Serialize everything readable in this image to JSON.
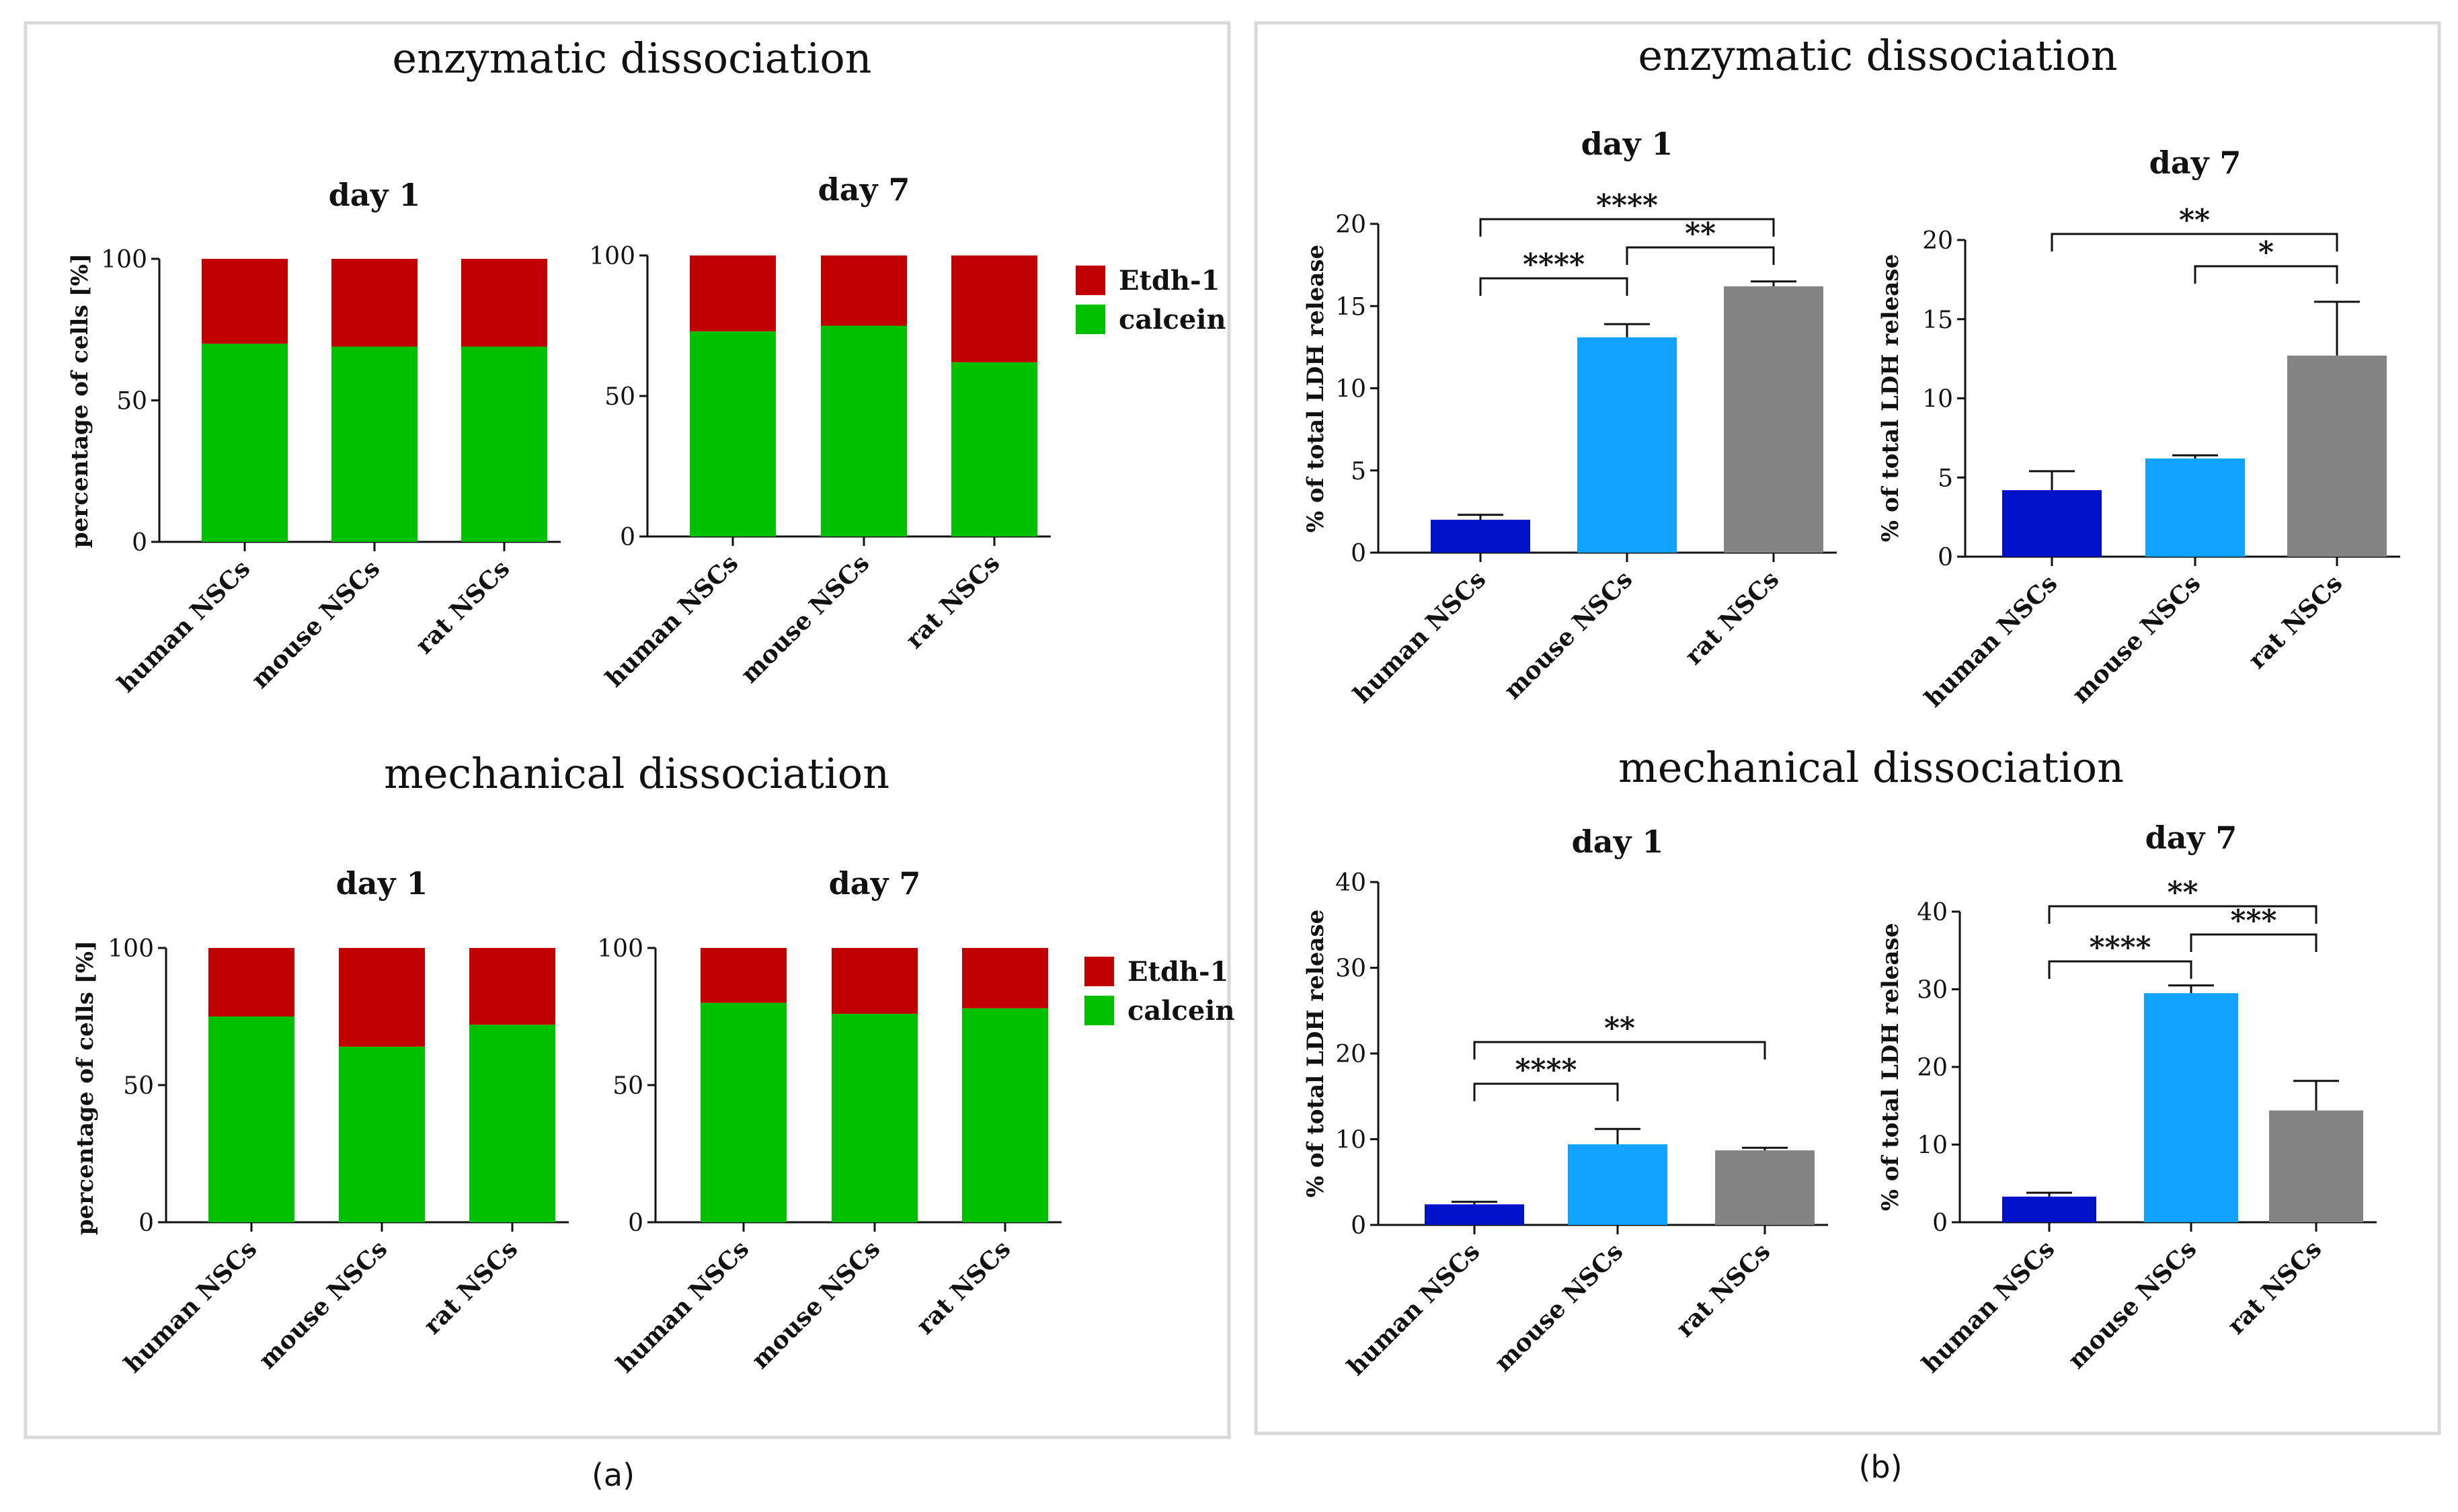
{
  "figure": {
    "panel_a": {
      "label": "(a)",
      "top_title": "enzymatic dissociation",
      "bottom_title": "mechanical dissociation"
    },
    "panel_b": {
      "label": "(b)",
      "top_title": "enzymatic dissociation",
      "bottom_title": "mechanical dissociation"
    }
  },
  "colors": {
    "etdh": "#c00000",
    "calcein": "#00c000",
    "human": "#0012c8",
    "mouse": "#10a2ff",
    "rat": "#848484",
    "border": "#d9d9d9"
  },
  "chart_data": [
    {
      "id": "a-enz-d1",
      "type": "bar",
      "stacked": true,
      "title": "day 1",
      "ylabel": "percentage of cells [%]",
      "ylim": [
        0,
        100
      ],
      "yticks": [
        0,
        50,
        100
      ],
      "categories": [
        "human NSCs",
        "mouse NSCs",
        "rat NSCs"
      ],
      "series": [
        {
          "name": "calcein",
          "values": [
            70,
            69,
            69
          ]
        },
        {
          "name": "Etdh-1",
          "values": [
            30,
            31,
            31
          ]
        }
      ],
      "legend": "right"
    },
    {
      "id": "a-enz-d7",
      "type": "bar",
      "stacked": true,
      "title": "day 7",
      "ylabel": "",
      "ylim": [
        0,
        100
      ],
      "yticks": [
        0,
        50,
        100
      ],
      "categories": [
        "human NSCs",
        "mouse NSCs",
        "rat NSCs"
      ],
      "series": [
        {
          "name": "calcein",
          "values": [
            73,
            75,
            62
          ]
        },
        {
          "name": "Etdh-1",
          "values": [
            27,
            25,
            38
          ]
        }
      ]
    },
    {
      "id": "a-mech-d1",
      "type": "bar",
      "stacked": true,
      "title": "day 1",
      "ylabel": "percentage of cells [%]",
      "ylim": [
        0,
        100
      ],
      "yticks": [
        0,
        50,
        100
      ],
      "categories": [
        "human NSCs",
        "mouse NSCs",
        "rat NSCs"
      ],
      "series": [
        {
          "name": "calcein",
          "values": [
            75,
            64,
            72
          ]
        },
        {
          "name": "Etdh-1",
          "values": [
            25,
            36,
            28
          ]
        }
      ],
      "legend": "right"
    },
    {
      "id": "a-mech-d7",
      "type": "bar",
      "stacked": true,
      "title": "day 7",
      "ylabel": "",
      "ylim": [
        0,
        100
      ],
      "yticks": [
        0,
        50,
        100
      ],
      "categories": [
        "human NSCs",
        "mouse NSCs",
        "rat NSCs"
      ],
      "series": [
        {
          "name": "calcein",
          "values": [
            80,
            76,
            78
          ]
        },
        {
          "name": "Etdh-1",
          "values": [
            20,
            24,
            22
          ]
        }
      ]
    },
    {
      "id": "b-enz-d1",
      "type": "bar",
      "title": "day 1",
      "ylabel": "% of total LDH release",
      "ylim": [
        0,
        20
      ],
      "yticks": [
        0,
        5,
        10,
        15,
        20
      ],
      "categories": [
        "human NSCs",
        "mouse NSCs",
        "rat NSCs"
      ],
      "values": [
        2.0,
        13.1,
        16.2
      ],
      "errors": [
        0.3,
        0.8,
        0.3
      ],
      "significance": [
        {
          "from": 0,
          "to": 1,
          "label": "****"
        },
        {
          "from": 1,
          "to": 2,
          "label": "**"
        },
        {
          "from": 0,
          "to": 2,
          "label": "****"
        }
      ]
    },
    {
      "id": "b-enz-d7",
      "type": "bar",
      "title": "day 7",
      "ylabel": "% of total LDH release",
      "ylim": [
        0,
        20
      ],
      "yticks": [
        0,
        5,
        10,
        15,
        20
      ],
      "categories": [
        "human NSCs",
        "mouse NSCs",
        "rat NSCs"
      ],
      "values": [
        4.2,
        6.2,
        12.7
      ],
      "errors": [
        1.2,
        0.2,
        3.4
      ],
      "significance": [
        {
          "from": 1,
          "to": 2,
          "label": "*"
        },
        {
          "from": 0,
          "to": 2,
          "label": "**"
        }
      ]
    },
    {
      "id": "b-mech-d1",
      "type": "bar",
      "title": "day 1",
      "ylabel": "% of total LDH release",
      "ylim": [
        0,
        40
      ],
      "yticks": [
        0,
        10,
        20,
        30,
        40
      ],
      "categories": [
        "human NSCs",
        "mouse NSCs",
        "rat NSCs"
      ],
      "values": [
        2.4,
        9.4,
        8.7
      ],
      "errors": [
        0.3,
        1.8,
        0.3
      ],
      "significance": [
        {
          "from": 0,
          "to": 1,
          "label": "****"
        },
        {
          "from": 0,
          "to": 2,
          "label": "**"
        }
      ]
    },
    {
      "id": "b-mech-d7",
      "type": "bar",
      "title": "day 7",
      "ylabel": "% of total LDH release",
      "ylim": [
        0,
        40
      ],
      "yticks": [
        0,
        10,
        20,
        30,
        40
      ],
      "categories": [
        "human NSCs",
        "mouse NSCs",
        "rat NSCs"
      ],
      "values": [
        3.3,
        29.5,
        14.4
      ],
      "errors": [
        0.5,
        1.0,
        3.8
      ],
      "significance": [
        {
          "from": 0,
          "to": 1,
          "label": "****"
        },
        {
          "from": 1,
          "to": 2,
          "label": "***"
        },
        {
          "from": 0,
          "to": 2,
          "label": "**"
        }
      ]
    }
  ]
}
